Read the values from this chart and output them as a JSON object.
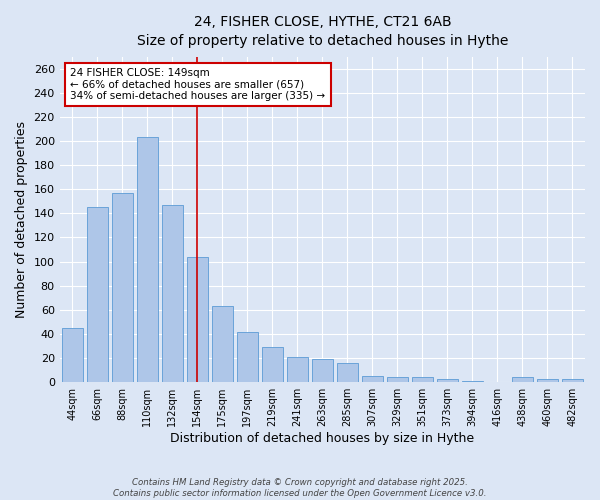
{
  "title_line1": "24, FISHER CLOSE, HYTHE, CT21 6AB",
  "title_line2": "Size of property relative to detached houses in Hythe",
  "xlabel": "Distribution of detached houses by size in Hythe",
  "ylabel": "Number of detached properties",
  "categories": [
    "44sqm",
    "66sqm",
    "88sqm",
    "110sqm",
    "132sqm",
    "154sqm",
    "175sqm",
    "197sqm",
    "219sqm",
    "241sqm",
    "263sqm",
    "285sqm",
    "307sqm",
    "329sqm",
    "351sqm",
    "373sqm",
    "394sqm",
    "416sqm",
    "438sqm",
    "460sqm",
    "482sqm"
  ],
  "values": [
    45,
    145,
    157,
    203,
    147,
    104,
    63,
    42,
    29,
    21,
    19,
    16,
    5,
    4,
    4,
    3,
    1,
    0,
    4,
    3,
    3
  ],
  "bar_color": "#aec6e8",
  "bar_edge_color": "#5b9bd5",
  "vline_x": 5,
  "vline_color": "#cc0000",
  "annotation_text": "24 FISHER CLOSE: 149sqm\n← 66% of detached houses are smaller (657)\n34% of semi-detached houses are larger (335) →",
  "annotation_box_color": "#ffffff",
  "annotation_box_edge_color": "#cc0000",
  "ylim": [
    0,
    270
  ],
  "yticks": [
    0,
    20,
    40,
    60,
    80,
    100,
    120,
    140,
    160,
    180,
    200,
    220,
    240,
    260
  ],
  "footnote_line1": "Contains HM Land Registry data © Crown copyright and database right 2025.",
  "footnote_line2": "Contains public sector information licensed under the Open Government Licence v3.0.",
  "background_color": "#dce6f5",
  "grid_color": "#ffffff"
}
